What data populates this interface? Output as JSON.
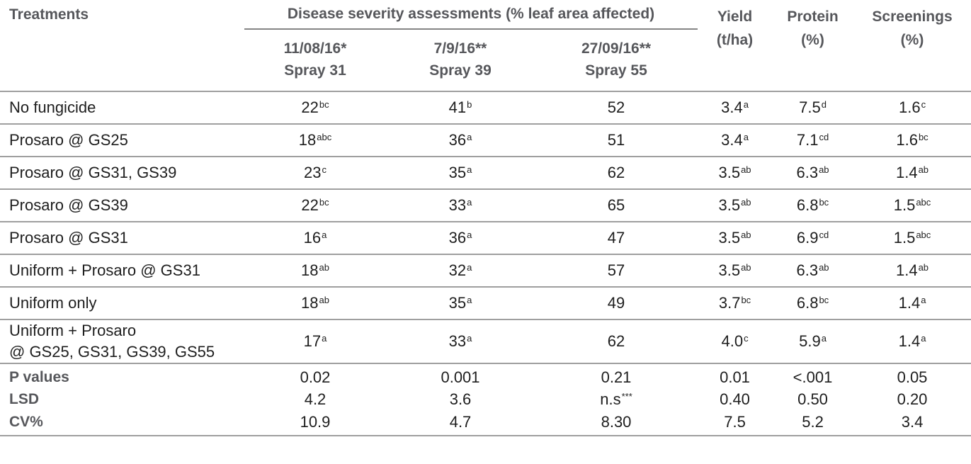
{
  "table": {
    "header": {
      "treatments": "Treatments",
      "group": "Disease severity assessments (% leaf area affected)",
      "subcols": [
        {
          "line1": "11/08/16*",
          "line2": "Spray 31"
        },
        {
          "line1": "7/9/16**",
          "line2": "Spray 39"
        },
        {
          "line1": "27/09/16**",
          "line2": "Spray 55"
        }
      ],
      "yield": {
        "line1": "Yield",
        "line2": "(t/ha)"
      },
      "protein": {
        "line1": "Protein",
        "line2": "(%)"
      },
      "screenings": {
        "line1": "Screenings",
        "line2": "(%)"
      }
    },
    "rows": [
      {
        "name": "No fungicide",
        "name2": null,
        "cells": [
          {
            "v": "22",
            "s": "bc"
          },
          {
            "v": "41",
            "s": "b"
          },
          {
            "v": "52"
          },
          {
            "v": "3.4",
            "s": "a"
          },
          {
            "v": "7.5",
            "s": "d"
          },
          {
            "v": "1.6",
            "s": "c"
          }
        ]
      },
      {
        "name": "Prosaro @ GS25",
        "name2": null,
        "cells": [
          {
            "v": "18",
            "s": "abc"
          },
          {
            "v": "36",
            "s": "a"
          },
          {
            "v": "51"
          },
          {
            "v": "3.4",
            "s": "a"
          },
          {
            "v": "7.1",
            "s": "cd"
          },
          {
            "v": "1.6",
            "s": "bc"
          }
        ]
      },
      {
        "name": "Prosaro @ GS31, GS39",
        "name2": null,
        "cells": [
          {
            "v": "23",
            "s": "c"
          },
          {
            "v": "35",
            "s": "a"
          },
          {
            "v": "62"
          },
          {
            "v": "3.5",
            "s": "ab"
          },
          {
            "v": "6.3",
            "s": "ab"
          },
          {
            "v": "1.4",
            "s": "ab"
          }
        ]
      },
      {
        "name": "Prosaro @ GS39",
        "name2": null,
        "cells": [
          {
            "v": "22",
            "s": "bc"
          },
          {
            "v": "33",
            "s": "a"
          },
          {
            "v": "65"
          },
          {
            "v": "3.5",
            "s": "ab"
          },
          {
            "v": "6.8",
            "s": "bc"
          },
          {
            "v": "1.5",
            "s": "abc"
          }
        ]
      },
      {
        "name": "Prosaro @ GS31",
        "name2": null,
        "cells": [
          {
            "v": "16",
            "s": "a"
          },
          {
            "v": "36",
            "s": "a"
          },
          {
            "v": "47"
          },
          {
            "v": "3.5",
            "s": "ab"
          },
          {
            "v": "6.9",
            "s": "cd"
          },
          {
            "v": "1.5",
            "s": "abc"
          }
        ]
      },
      {
        "name": "Uniform + Prosaro @ GS31",
        "name2": null,
        "cells": [
          {
            "v": "18",
            "s": "ab"
          },
          {
            "v": "32",
            "s": "a"
          },
          {
            "v": "57"
          },
          {
            "v": "3.5",
            "s": "ab"
          },
          {
            "v": "6.3",
            "s": "ab"
          },
          {
            "v": "1.4",
            "s": "ab"
          }
        ]
      },
      {
        "name": "Uniform only",
        "name2": null,
        "cells": [
          {
            "v": "18",
            "s": "ab"
          },
          {
            "v": "35",
            "s": "a"
          },
          {
            "v": "49"
          },
          {
            "v": "3.7",
            "s": "bc"
          },
          {
            "v": "6.8",
            "s": "bc"
          },
          {
            "v": "1.4",
            "s": "a"
          }
        ]
      },
      {
        "name": "Uniform + Prosaro",
        "name2": "@ GS25, GS31, GS39, GS55",
        "cells": [
          {
            "v": "17",
            "s": "a"
          },
          {
            "v": "33",
            "s": "a"
          },
          {
            "v": "62"
          },
          {
            "v": "4.0",
            "s": "c"
          },
          {
            "v": "5.9",
            "s": "a"
          },
          {
            "v": "1.4",
            "s": "a"
          }
        ]
      }
    ],
    "stats": [
      {
        "label": "P values",
        "cells": [
          {
            "v": "0.02"
          },
          {
            "v": "0.001"
          },
          {
            "v": "0.21"
          },
          {
            "v": "0.01"
          },
          {
            "v": "<.001"
          },
          {
            "v": "0.05"
          }
        ]
      },
      {
        "label": "LSD",
        "cells": [
          {
            "v": "4.2"
          },
          {
            "v": "3.6"
          },
          {
            "v": "n.s",
            "s": "***"
          },
          {
            "v": "0.40"
          },
          {
            "v": "0.50"
          },
          {
            "v": "0.20"
          }
        ]
      },
      {
        "label": "CV%",
        "cells": [
          {
            "v": "10.9"
          },
          {
            "v": "4.7"
          },
          {
            "v": "8.30"
          },
          {
            "v": "7.5"
          },
          {
            "v": "5.2"
          },
          {
            "v": "3.4"
          }
        ]
      }
    ]
  },
  "colors": {
    "header_text": "#56575b",
    "body_text": "#1e1e1e",
    "row_line": "#9f9f9f"
  }
}
